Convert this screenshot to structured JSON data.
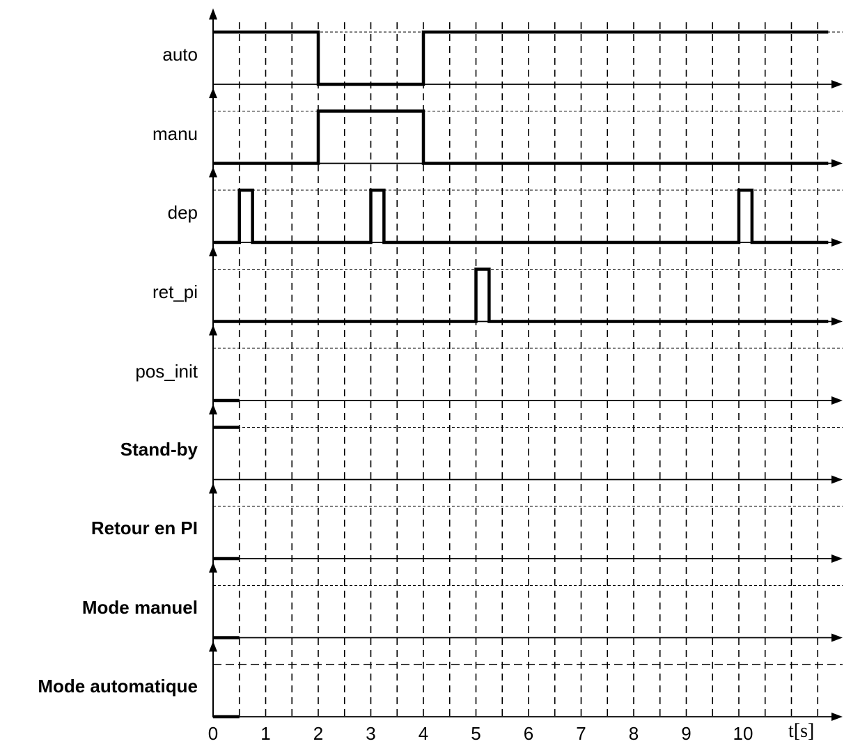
{
  "diagram": {
    "signals": [
      {
        "name": "auto",
        "bold": false,
        "levels": [
          [
            0,
            1
          ],
          [
            2,
            0
          ],
          [
            4,
            1
          ]
        ],
        "end": 11.7
      },
      {
        "name": "manu",
        "bold": false,
        "levels": [
          [
            0,
            0
          ],
          [
            2,
            1
          ],
          [
            4,
            0
          ]
        ],
        "end": 11.7
      },
      {
        "name": "dep",
        "bold": false,
        "levels": [
          [
            0,
            0
          ],
          [
            0.5,
            1
          ],
          [
            0.75,
            0
          ],
          [
            3,
            1
          ],
          [
            3.25,
            0
          ],
          [
            10,
            1
          ],
          [
            10.25,
            0
          ]
        ],
        "end": 11.7
      },
      {
        "name": "ret_pi",
        "bold": false,
        "levels": [
          [
            0,
            0
          ],
          [
            5,
            1
          ],
          [
            5.25,
            0
          ]
        ],
        "end": 11.7
      },
      {
        "name": "pos_init",
        "bold": false,
        "levels": [
          [
            0,
            0
          ]
        ],
        "end": 0.5
      },
      {
        "name": "Stand-by",
        "bold": true,
        "levels": [
          [
            0,
            1
          ]
        ],
        "end": 0.5
      },
      {
        "name": "Retour en PI",
        "bold": true,
        "levels": [
          [
            0,
            0
          ]
        ],
        "end": 0.5
      },
      {
        "name": "Mode manuel",
        "bold": true,
        "levels": [
          [
            0,
            0
          ]
        ],
        "end": 0.5
      },
      {
        "name": "Mode automatique",
        "bold": true,
        "levels": [
          [
            0,
            0
          ]
        ],
        "end": 0.5
      }
    ],
    "x_ticks": [
      "0",
      "1",
      "2",
      "3",
      "4",
      "5",
      "6",
      "7",
      "8",
      "9",
      "10"
    ],
    "x_unit": "t[s]",
    "time_range": [
      0,
      11.7
    ],
    "grid_step": 0.5,
    "colors": {
      "signal": "#000000",
      "grid": "#000000",
      "background": "#ffffff"
    }
  }
}
